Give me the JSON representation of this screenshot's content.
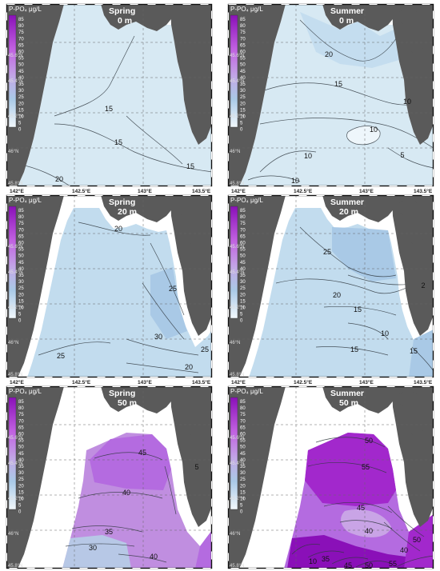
{
  "unit_label": "P-PO₄ μg/L",
  "legend_ticks": [
    "85",
    "80",
    "75",
    "70",
    "65",
    "60",
    "55",
    "50",
    "45",
    "40",
    "35",
    "30",
    "25",
    "20",
    "15",
    "10",
    "5",
    "0"
  ],
  "lat_labels": [
    "45.6°N",
    "45.4°N",
    "45.2°N",
    "46°N",
    "45.8°N"
  ],
  "lon_labels": [
    "142°E",
    "142.5°E",
    "143°E",
    "143.5°E"
  ],
  "colors": {
    "land": "#5a5a5a",
    "water_low": "#d7e9f3",
    "water_mid": "#c2dcee",
    "water_high": "#a9c9e6",
    "purple_light": "#c08ee0",
    "purple_mid": "#b46be0",
    "purple_dark": "#a228cc",
    "purple_deep": "#8a10b8",
    "coast_white": "#ffffff"
  },
  "panels": [
    {
      "season": "Spring",
      "depth": "0 m",
      "contours": [
        "15",
        "15",
        "15",
        "20"
      ]
    },
    {
      "season": "Summer",
      "depth": "0 m",
      "contours": [
        "20",
        "15",
        "10",
        "10",
        "5",
        "10",
        "10"
      ]
    },
    {
      "season": "Spring",
      "depth": "20 m",
      "contours": [
        "20",
        "25",
        "30",
        "25",
        "25",
        "20"
      ]
    },
    {
      "season": "Summer",
      "depth": "20 m",
      "contours": [
        "25",
        "20",
        "2",
        "15",
        "10",
        "15",
        "15"
      ]
    },
    {
      "season": "Spring",
      "depth": "50 m",
      "contours": [
        "45",
        "40",
        "5",
        "30",
        "35",
        "40"
      ]
    },
    {
      "season": "Summer",
      "depth": "50 m",
      "contours": [
        "50",
        "55",
        "45",
        "40",
        "50",
        "40",
        "10",
        "35",
        "45",
        "50",
        "55"
      ]
    }
  ]
}
